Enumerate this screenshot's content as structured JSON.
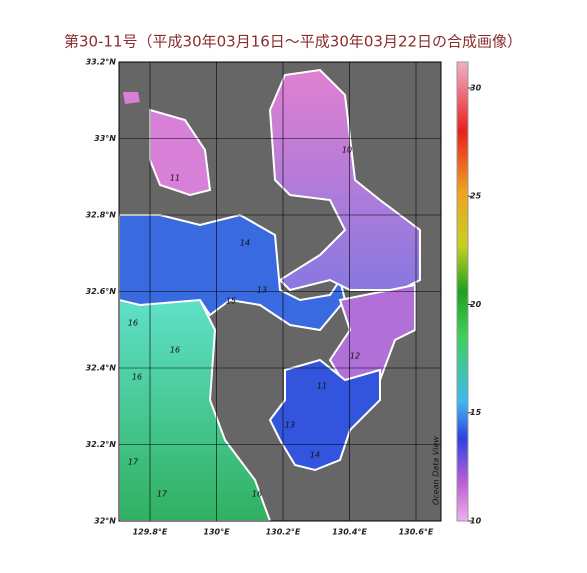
{
  "title": "第30-11号（平成30年03月16日～平成30年03月22日の合成画像）",
  "map": {
    "lat_ticks": [
      {
        "value": 32.0,
        "label": "32°N"
      },
      {
        "value": 32.2,
        "label": "32.2°N"
      },
      {
        "value": 32.4,
        "label": "32.4°N"
      },
      {
        "value": 32.6,
        "label": "32.6°N"
      },
      {
        "value": 32.8,
        "label": "32.8°N"
      },
      {
        "value": 33.0,
        "label": "33°N"
      },
      {
        "value": 33.2,
        "label": "33.2°N"
      }
    ],
    "lon_ticks": [
      {
        "value": 129.8,
        "label": "129.8°E"
      },
      {
        "value": 130.0,
        "label": "130°E"
      },
      {
        "value": 130.2,
        "label": "130.2°E"
      },
      {
        "value": 130.4,
        "label": "130.4°E"
      },
      {
        "value": 130.6,
        "label": "130.6°E"
      }
    ],
    "contour_labels": [
      "11",
      "10",
      "14",
      "13",
      "15",
      "16",
      "16",
      "16",
      "17",
      "17",
      "12",
      "11",
      "13",
      "14",
      "16"
    ],
    "credit": "Ocean Data View"
  },
  "colorbar": {
    "lim": [
      10,
      31.2
    ],
    "ticks": [
      10,
      15,
      20,
      25,
      30
    ]
  }
}
